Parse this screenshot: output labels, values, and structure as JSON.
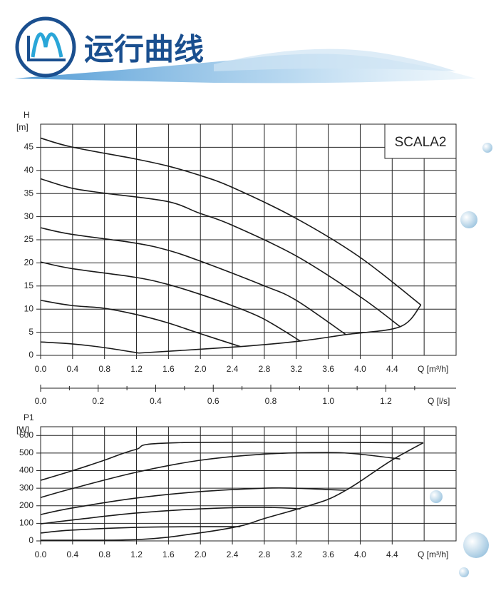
{
  "header": {
    "title": "运行曲线"
  },
  "chart_data": [
    {
      "type": "line",
      "ylabel": "H",
      "yunit": "[m]",
      "xlabel": "Q [m³/h]",
      "annotation": "SCALA2",
      "xlim": [
        0,
        5.2
      ],
      "ylim": [
        0,
        50
      ],
      "xticks": [
        {
          "value": 0,
          "label": "0.0"
        },
        0.4,
        0.8,
        1.2,
        1.6,
        {
          "value": 2,
          "label": "2.0"
        },
        2.4,
        2.8,
        3.2,
        3.6,
        {
          "value": 4,
          "label": "4.0"
        },
        4.4
      ],
      "xgrid": [
        0,
        0.4,
        0.8,
        1.2,
        1.6,
        2,
        2.4,
        2.8,
        3.2,
        3.6,
        4,
        4.4,
        4.8,
        5.2
      ],
      "yticks": [
        0,
        5,
        10,
        15,
        20,
        25,
        30,
        35,
        40,
        45
      ],
      "ygrid": [
        0,
        5,
        10,
        15,
        20,
        25,
        30,
        35,
        40,
        45,
        50
      ],
      "x2label": "Q [l/s]",
      "x2lim": [
        0,
        1.444
      ],
      "x2ticks": [
        {
          "value": 0,
          "label": "0.0"
        },
        0.2,
        0.4,
        0.6,
        0.8,
        {
          "value": 1,
          "label": "1.0"
        },
        1.2
      ],
      "x2minorticks": [
        0.1,
        0.3,
        0.5,
        0.7,
        0.9,
        1.1,
        1.3
      ],
      "color": "#1a1a1a",
      "series": [
        {
          "x": [
            0,
            0.38,
            1.18,
            1.58,
            1.98,
            2.39,
            3.19,
            3.99,
            4.76
          ],
          "values": [
            47,
            45.1,
            42.5,
            41,
            39,
            36.4,
            29.7,
            21.3,
            10.9
          ]
        },
        {
          "x": [
            0,
            0.38,
            0.79,
            1.58,
            1.98,
            2.39,
            3.19,
            3.99,
            4.5
          ],
          "values": [
            38.2,
            36.2,
            35.1,
            33.3,
            30.8,
            28.2,
            21.6,
            12.8,
            6.2
          ]
        },
        {
          "x": [
            0,
            0.38,
            1.18,
            1.58,
            1.98,
            2.79,
            3.19,
            3.82
          ],
          "values": [
            27.6,
            26.2,
            24.3,
            22.8,
            20.5,
            15.1,
            12,
            4.5
          ]
        },
        {
          "x": [
            0,
            0.38,
            1.18,
            1.58,
            1.98,
            2.39,
            2.79,
            3.25
          ],
          "values": [
            20.2,
            18.8,
            16.9,
            15.4,
            13.3,
            10.8,
            7.9,
            3.1
          ]
        },
        {
          "x": [
            0,
            0.38,
            0.79,
            1.18,
            1.58,
            1.98,
            2.5
          ],
          "values": [
            11.9,
            10.8,
            10.2,
            8.9,
            7.1,
            4.8,
            1.9
          ]
        },
        {
          "x": [
            0,
            0.38,
            0.79,
            1.23
          ],
          "values": [
            2.9,
            2.5,
            1.7,
            0.5
          ]
        },
        {
          "x": [
            1.23,
            2.5,
            3.25,
            3.82,
            4.5,
            4.76
          ],
          "values": [
            0.5,
            1.9,
            3.1,
            4.5,
            6.2,
            10.9
          ]
        }
      ]
    },
    {
      "type": "line",
      "ylabel": "P1",
      "yunit": "[W]",
      "xlabel": "Q [m³/h]",
      "xlim": [
        0,
        5.2
      ],
      "ylim": [
        0,
        650
      ],
      "xticks": [
        {
          "value": 0,
          "label": "0.0"
        },
        0.4,
        0.8,
        1.2,
        1.6,
        {
          "value": 2,
          "label": "2.0"
        },
        2.4,
        2.8,
        3.2,
        3.6,
        {
          "value": 4,
          "label": "4.0"
        },
        4.4
      ],
      "xgrid": [
        0,
        0.4,
        0.8,
        1.2,
        1.6,
        2,
        2.4,
        2.8,
        3.2,
        3.6,
        4,
        4.4,
        4.8,
        5.2
      ],
      "yticks": [
        0,
        100,
        200,
        300,
        400,
        500,
        600
      ],
      "ygrid": [
        0,
        100,
        200,
        300,
        400,
        500,
        600
      ],
      "color": "#1a1a1a",
      "series": [
        {
          "x": [
            0,
            0.38,
            0.79,
            1.18,
            1.7,
            4.79
          ],
          "values": [
            345,
            397,
            458,
            519,
            559,
            559
          ]
        },
        {
          "x": [
            0,
            0.38,
            1.18,
            1.98,
            2.79,
            3.59,
            3.99,
            4.5
          ],
          "values": [
            247,
            296,
            389,
            458,
            494,
            503,
            494,
            466
          ]
        },
        {
          "x": [
            0,
            0.38,
            1.18,
            1.98,
            2.79,
            3.19,
            3.82
          ],
          "values": [
            150,
            186,
            243,
            280,
            300,
            300,
            288
          ]
        },
        {
          "x": [
            0,
            0.38,
            1.18,
            1.98,
            2.79,
            3.25
          ],
          "values": [
            97,
            118,
            158,
            182,
            191,
            182
          ]
        },
        {
          "x": [
            0,
            0.38,
            1.18,
            1.98,
            2.5
          ],
          "values": [
            45,
            61,
            77,
            81,
            81
          ]
        },
        {
          "x": [
            0,
            1.23,
            1.98,
            2.5,
            2.79,
            3.25,
            3.59,
            3.82,
            3.99,
            4.39,
            4.79
          ],
          "values": [
            4,
            8,
            45,
            85,
            126,
            186,
            235,
            288,
            336,
            458,
            559
          ]
        }
      ]
    }
  ]
}
